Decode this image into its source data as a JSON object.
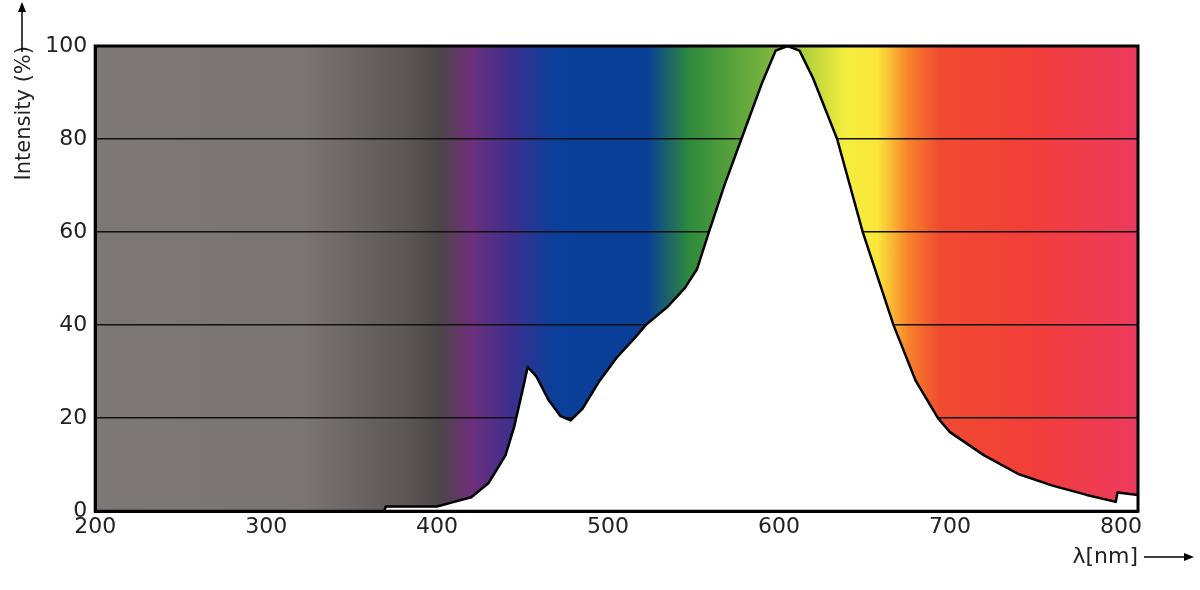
{
  "chart_data": {
    "type": "area",
    "xlabel": "λ[nm]",
    "ylabel": "Intensity (%)",
    "xlim": [
      200,
      810
    ],
    "xticks": [
      200,
      300,
      400,
      500,
      600,
      700,
      800
    ],
    "ylim": [
      0,
      100
    ],
    "yticks": [
      0,
      20,
      40,
      60,
      80,
      100
    ],
    "grid": "y",
    "legend": false,
    "marker": "none",
    "series": [
      {
        "color": "#000000",
        "x": [
          369,
          370,
          400,
          410,
          420,
          430,
          440,
          445,
          450,
          453,
          458,
          465,
          472,
          478,
          485,
          495,
          505,
          515,
          522,
          535,
          545,
          552,
          559,
          568,
          578,
          590,
          598,
          605,
          612,
          620,
          634,
          649,
          667,
          680,
          693,
          700,
          720,
          740,
          760,
          780,
          797,
          798,
          810
        ],
        "values": [
          0,
          1,
          1,
          2,
          3,
          6,
          12,
          18,
          26,
          31,
          29,
          24,
          20.5,
          19.5,
          22,
          28,
          33,
          37,
          40,
          44,
          48,
          52,
          60,
          70,
          80,
          92,
          99,
          100,
          99,
          93,
          80,
          60,
          40,
          28,
          20,
          17,
          12,
          8,
          5.5,
          3.5,
          2,
          4,
          3.5
        ]
      }
    ]
  }
}
